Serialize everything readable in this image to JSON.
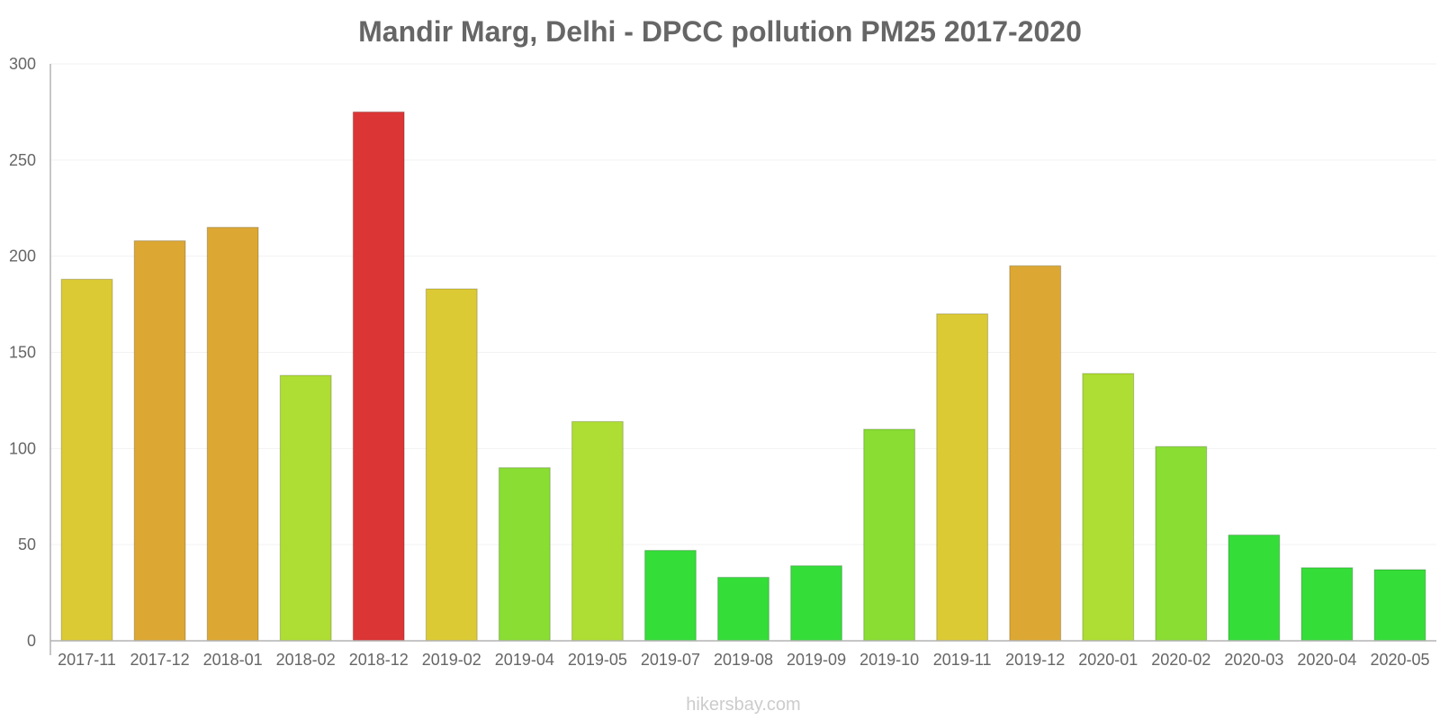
{
  "chart_data": {
    "type": "bar",
    "title": "Mandir Marg, Delhi - DPCC pollution PM25 2017-2020",
    "xlabel": "",
    "ylabel": "",
    "ylim": [
      0,
      300
    ],
    "yticks": [
      0,
      50,
      100,
      150,
      200,
      250,
      300
    ],
    "grid": true,
    "categories": [
      "2017-11",
      "2017-12",
      "2018-01",
      "2018-02",
      "2018-12",
      "2019-02",
      "2019-04",
      "2019-05",
      "2019-07",
      "2019-08",
      "2019-09",
      "2019-10",
      "2019-11",
      "2019-12",
      "2020-01",
      "2020-02",
      "2020-03",
      "2020-04",
      "2020-05"
    ],
    "values": [
      188,
      208,
      215,
      138,
      275,
      183,
      90,
      114,
      47,
      33,
      39,
      110,
      170,
      195,
      139,
      101,
      55,
      38,
      37
    ],
    "bar_colors": [
      "#dbca33",
      "#dca833",
      "#dca833",
      "#aedd33",
      "#dc3535",
      "#dbca33",
      "#89dd33",
      "#aedd33",
      "#35dd39",
      "#35dd39",
      "#35dd39",
      "#89dd33",
      "#dbca33",
      "#dca833",
      "#aedd33",
      "#89dd33",
      "#35dd39",
      "#35dd39",
      "#35dd39"
    ]
  },
  "watermark": "hikersbay.com",
  "colors": {
    "title": "#666666",
    "tick_label": "#666666",
    "axis": "#b3b3b3",
    "grid": "#f2f2f2",
    "watermark": "#cccccc"
  }
}
